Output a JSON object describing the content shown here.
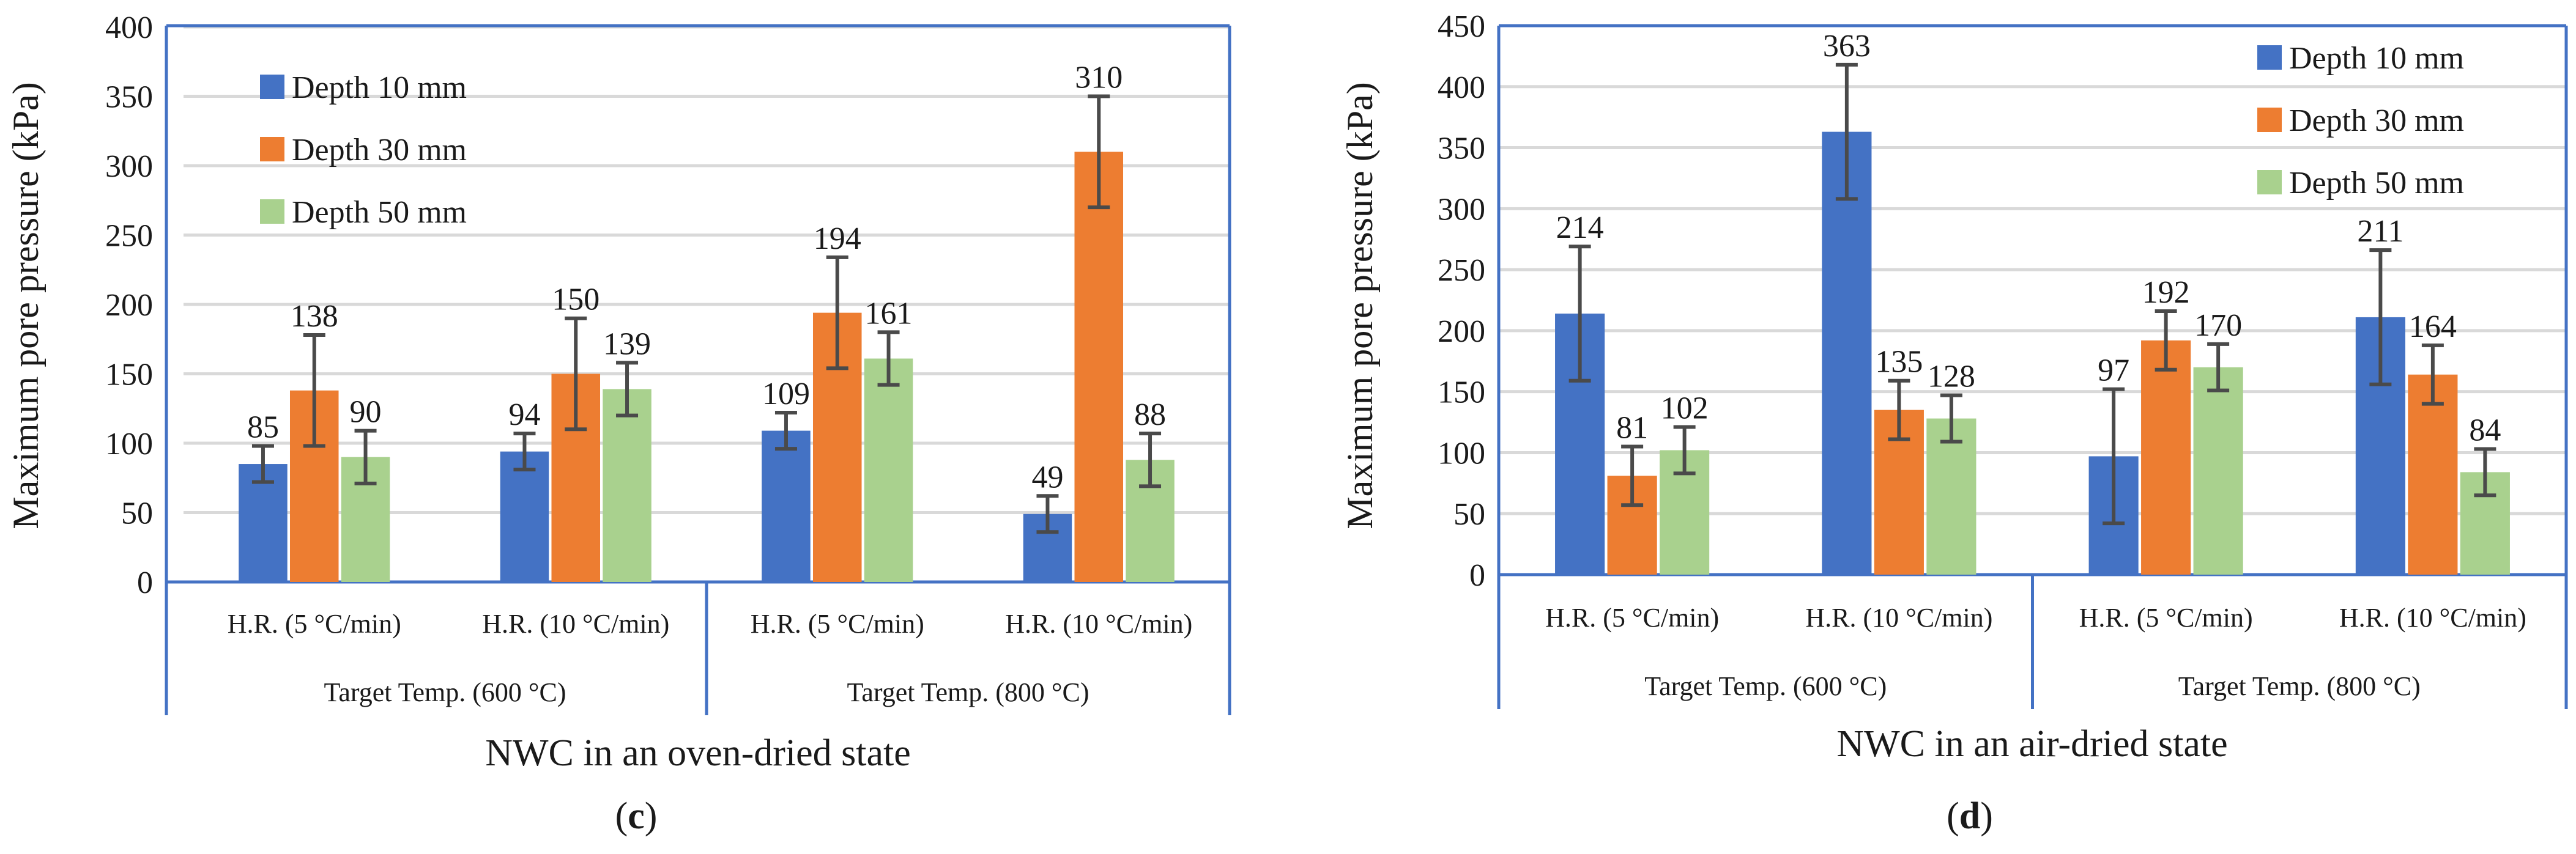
{
  "figure": {
    "panels": [
      {
        "letter": "c",
        "caption_open": "(",
        "caption_close": ")"
      },
      {
        "letter": "d",
        "caption_open": "(",
        "caption_close": ")"
      }
    ]
  },
  "colors": {
    "depth10": "#4472c4",
    "depth30": "#ed7d31",
    "depth50": "#a9d18e",
    "frame": "#4472c4",
    "grid": "#d9d9d9",
    "error": "#4a4a4a"
  },
  "chart_data": [
    {
      "type": "bar",
      "title": "",
      "xlabel": "NWC in an oven-dried state",
      "ylabel": "Maximum pore pressure  (kPa)",
      "ylim": [
        0,
        400
      ],
      "yticks": [
        0,
        50,
        100,
        150,
        200,
        250,
        300,
        350,
        400
      ],
      "legend_position": "top-left",
      "categories": [
        "H.R. (5 °C/min)",
        "H.R. (10 °C/min)",
        "H.R. (5 °C/min)",
        "H.R. (10 °C/min)"
      ],
      "groups": [
        "Target Temp. (600 °C)",
        "Target Temp. (800 °C)"
      ],
      "series": [
        {
          "name": "Depth 10 mm",
          "color_key": "depth10",
          "values": [
            85,
            94,
            109,
            49
          ],
          "errors": [
            13,
            13,
            13,
            13
          ],
          "labels": [
            "85",
            "94",
            "109",
            "49"
          ]
        },
        {
          "name": "Depth 30 mm",
          "color_key": "depth30",
          "values": [
            138,
            150,
            194,
            310
          ],
          "errors": [
            40,
            40,
            40,
            40
          ],
          "labels": [
            "138",
            "150",
            "194",
            "310"
          ]
        },
        {
          "name": "Depth 50 mm",
          "color_key": "depth50",
          "values": [
            90,
            139,
            161,
            88
          ],
          "errors": [
            19,
            19,
            19,
            19
          ],
          "labels": [
            "90",
            "139",
            "161",
            "88"
          ]
        }
      ]
    },
    {
      "type": "bar",
      "title": "",
      "xlabel": "NWC in an air-dried state",
      "ylabel": "Maximum pore pressure  (kPa)",
      "ylim": [
        0,
        450
      ],
      "yticks": [
        0,
        50,
        100,
        150,
        200,
        250,
        300,
        350,
        400,
        450
      ],
      "legend_position": "top-right",
      "categories": [
        "H.R. (5 °C/min)",
        "H.R. (10 °C/min)",
        "H.R. (5 °C/min)",
        "H.R. (10 °C/min)"
      ],
      "groups": [
        "Target Temp. (600 °C)",
        "Target Temp. (800 °C)"
      ],
      "series": [
        {
          "name": "Depth 10 mm",
          "color_key": "depth10",
          "values": [
            214,
            363,
            97,
            211
          ],
          "errors": [
            55,
            55,
            55,
            55
          ],
          "labels": [
            "214",
            "363",
            "97",
            "211"
          ]
        },
        {
          "name": "Depth 30 mm",
          "color_key": "depth30",
          "values": [
            81,
            135,
            192,
            164
          ],
          "errors": [
            24,
            24,
            24,
            24
          ],
          "labels": [
            "81",
            "135",
            "192",
            "164"
          ]
        },
        {
          "name": "Depth 50 mm",
          "color_key": "depth50",
          "values": [
            102,
            128,
            170,
            84
          ],
          "errors": [
            19,
            19,
            19,
            19
          ],
          "labels": [
            "102",
            "128",
            "170",
            "84"
          ]
        }
      ]
    }
  ]
}
